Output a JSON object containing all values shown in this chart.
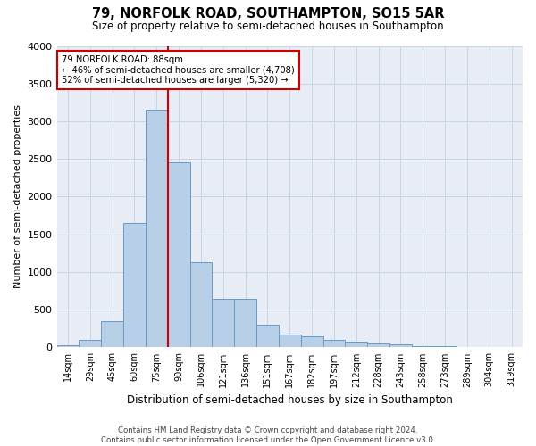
{
  "title1": "79, NORFOLK ROAD, SOUTHAMPTON, SO15 5AR",
  "title2": "Size of property relative to semi-detached houses in Southampton",
  "xlabel": "Distribution of semi-detached houses by size in Southampton",
  "ylabel": "Number of semi-detached properties",
  "footer1": "Contains HM Land Registry data © Crown copyright and database right 2024.",
  "footer2": "Contains public sector information licensed under the Open Government Licence v3.0.",
  "categories": [
    "14sqm",
    "29sqm",
    "45sqm",
    "60sqm",
    "75sqm",
    "90sqm",
    "106sqm",
    "121sqm",
    "136sqm",
    "151sqm",
    "167sqm",
    "182sqm",
    "197sqm",
    "212sqm",
    "228sqm",
    "243sqm",
    "258sqm",
    "273sqm",
    "289sqm",
    "304sqm",
    "319sqm"
  ],
  "values": [
    30,
    100,
    350,
    1650,
    3150,
    2450,
    1130,
    650,
    640,
    300,
    175,
    150,
    105,
    75,
    55,
    40,
    20,
    12,
    8,
    5,
    5
  ],
  "bar_color": "#b8cfe8",
  "bar_edge_color": "#6699cc",
  "highlight_bin_index": 5,
  "highlight_color": "#cc0000",
  "annotation_text1": "79 NORFOLK ROAD: 88sqm",
  "annotation_text2": "← 46% of semi-detached houses are smaller (4,708)",
  "annotation_text3": "52% of semi-detached houses are larger (5,320) →",
  "ylim": [
    0,
    4000
  ],
  "yticks": [
    0,
    500,
    1000,
    1500,
    2000,
    2500,
    3000,
    3500,
    4000
  ],
  "background_color": "#ffffff",
  "plot_bg_color": "#e8edf5",
  "grid_color": "#c8d4e8"
}
